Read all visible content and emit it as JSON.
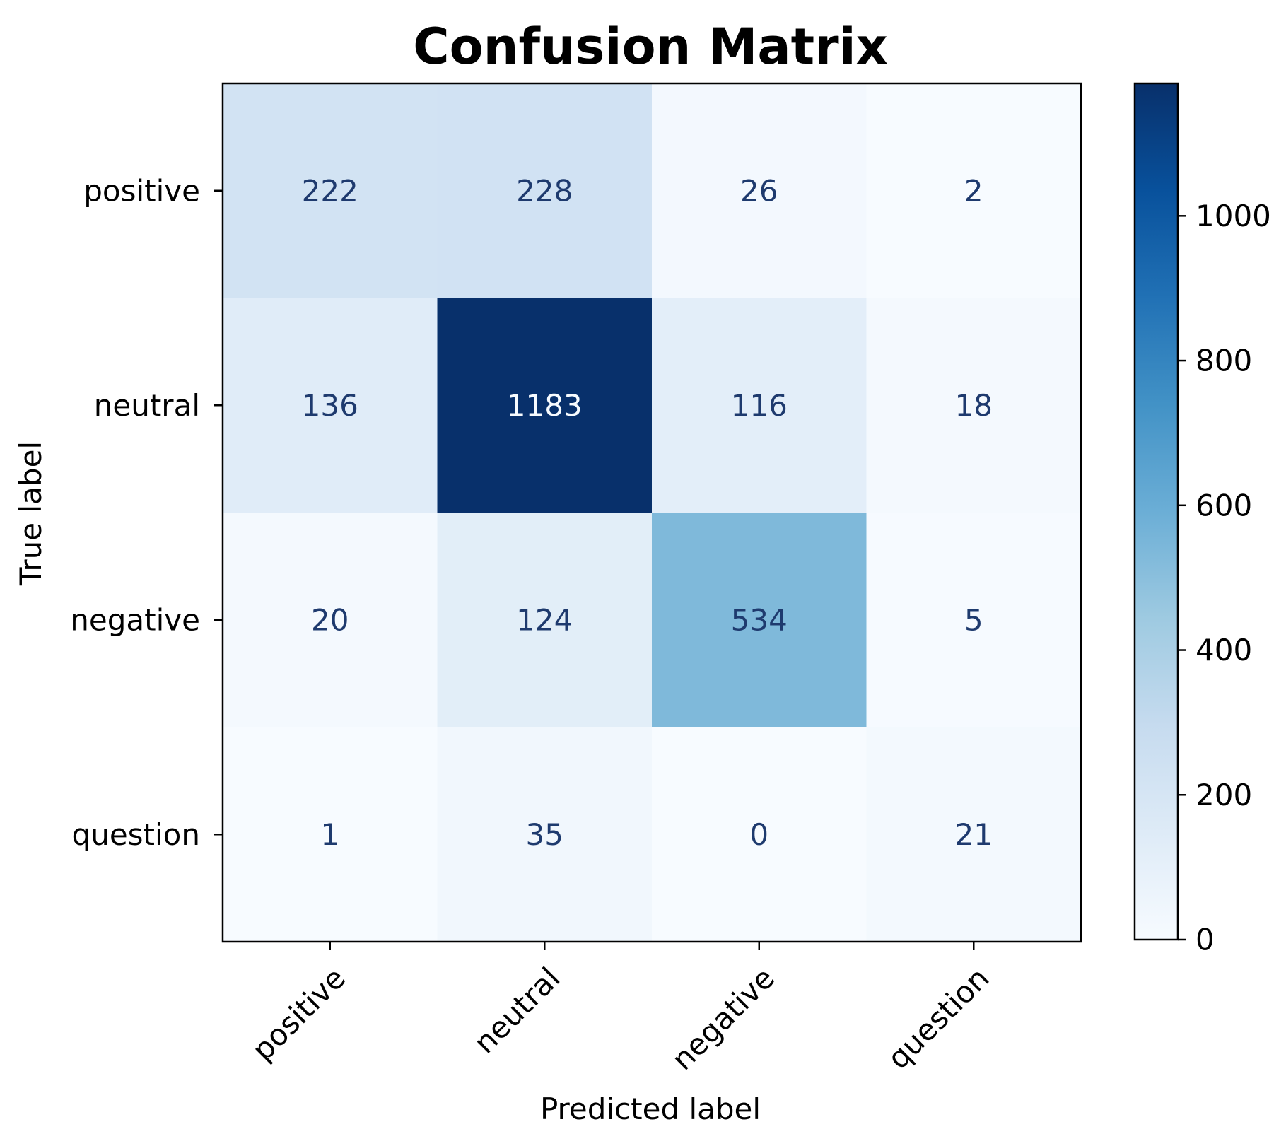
{
  "chart_data": {
    "type": "heatmap",
    "title": "Confusion Matrix",
    "xlabel": "Predicted label",
    "ylabel": "True label",
    "x_categories": [
      "positive",
      "neutral",
      "negative",
      "question"
    ],
    "y_categories": [
      "positive",
      "neutral",
      "negative",
      "question"
    ],
    "values": [
      [
        222,
        228,
        26,
        2
      ],
      [
        136,
        1183,
        116,
        18
      ],
      [
        20,
        124,
        534,
        5
      ],
      [
        1,
        35,
        0,
        21
      ]
    ],
    "colormap": "Blues",
    "colorbar": {
      "range": [
        0,
        1183
      ],
      "ticks": [
        0,
        200,
        400,
        600,
        800,
        1000
      ]
    },
    "grid": false
  }
}
